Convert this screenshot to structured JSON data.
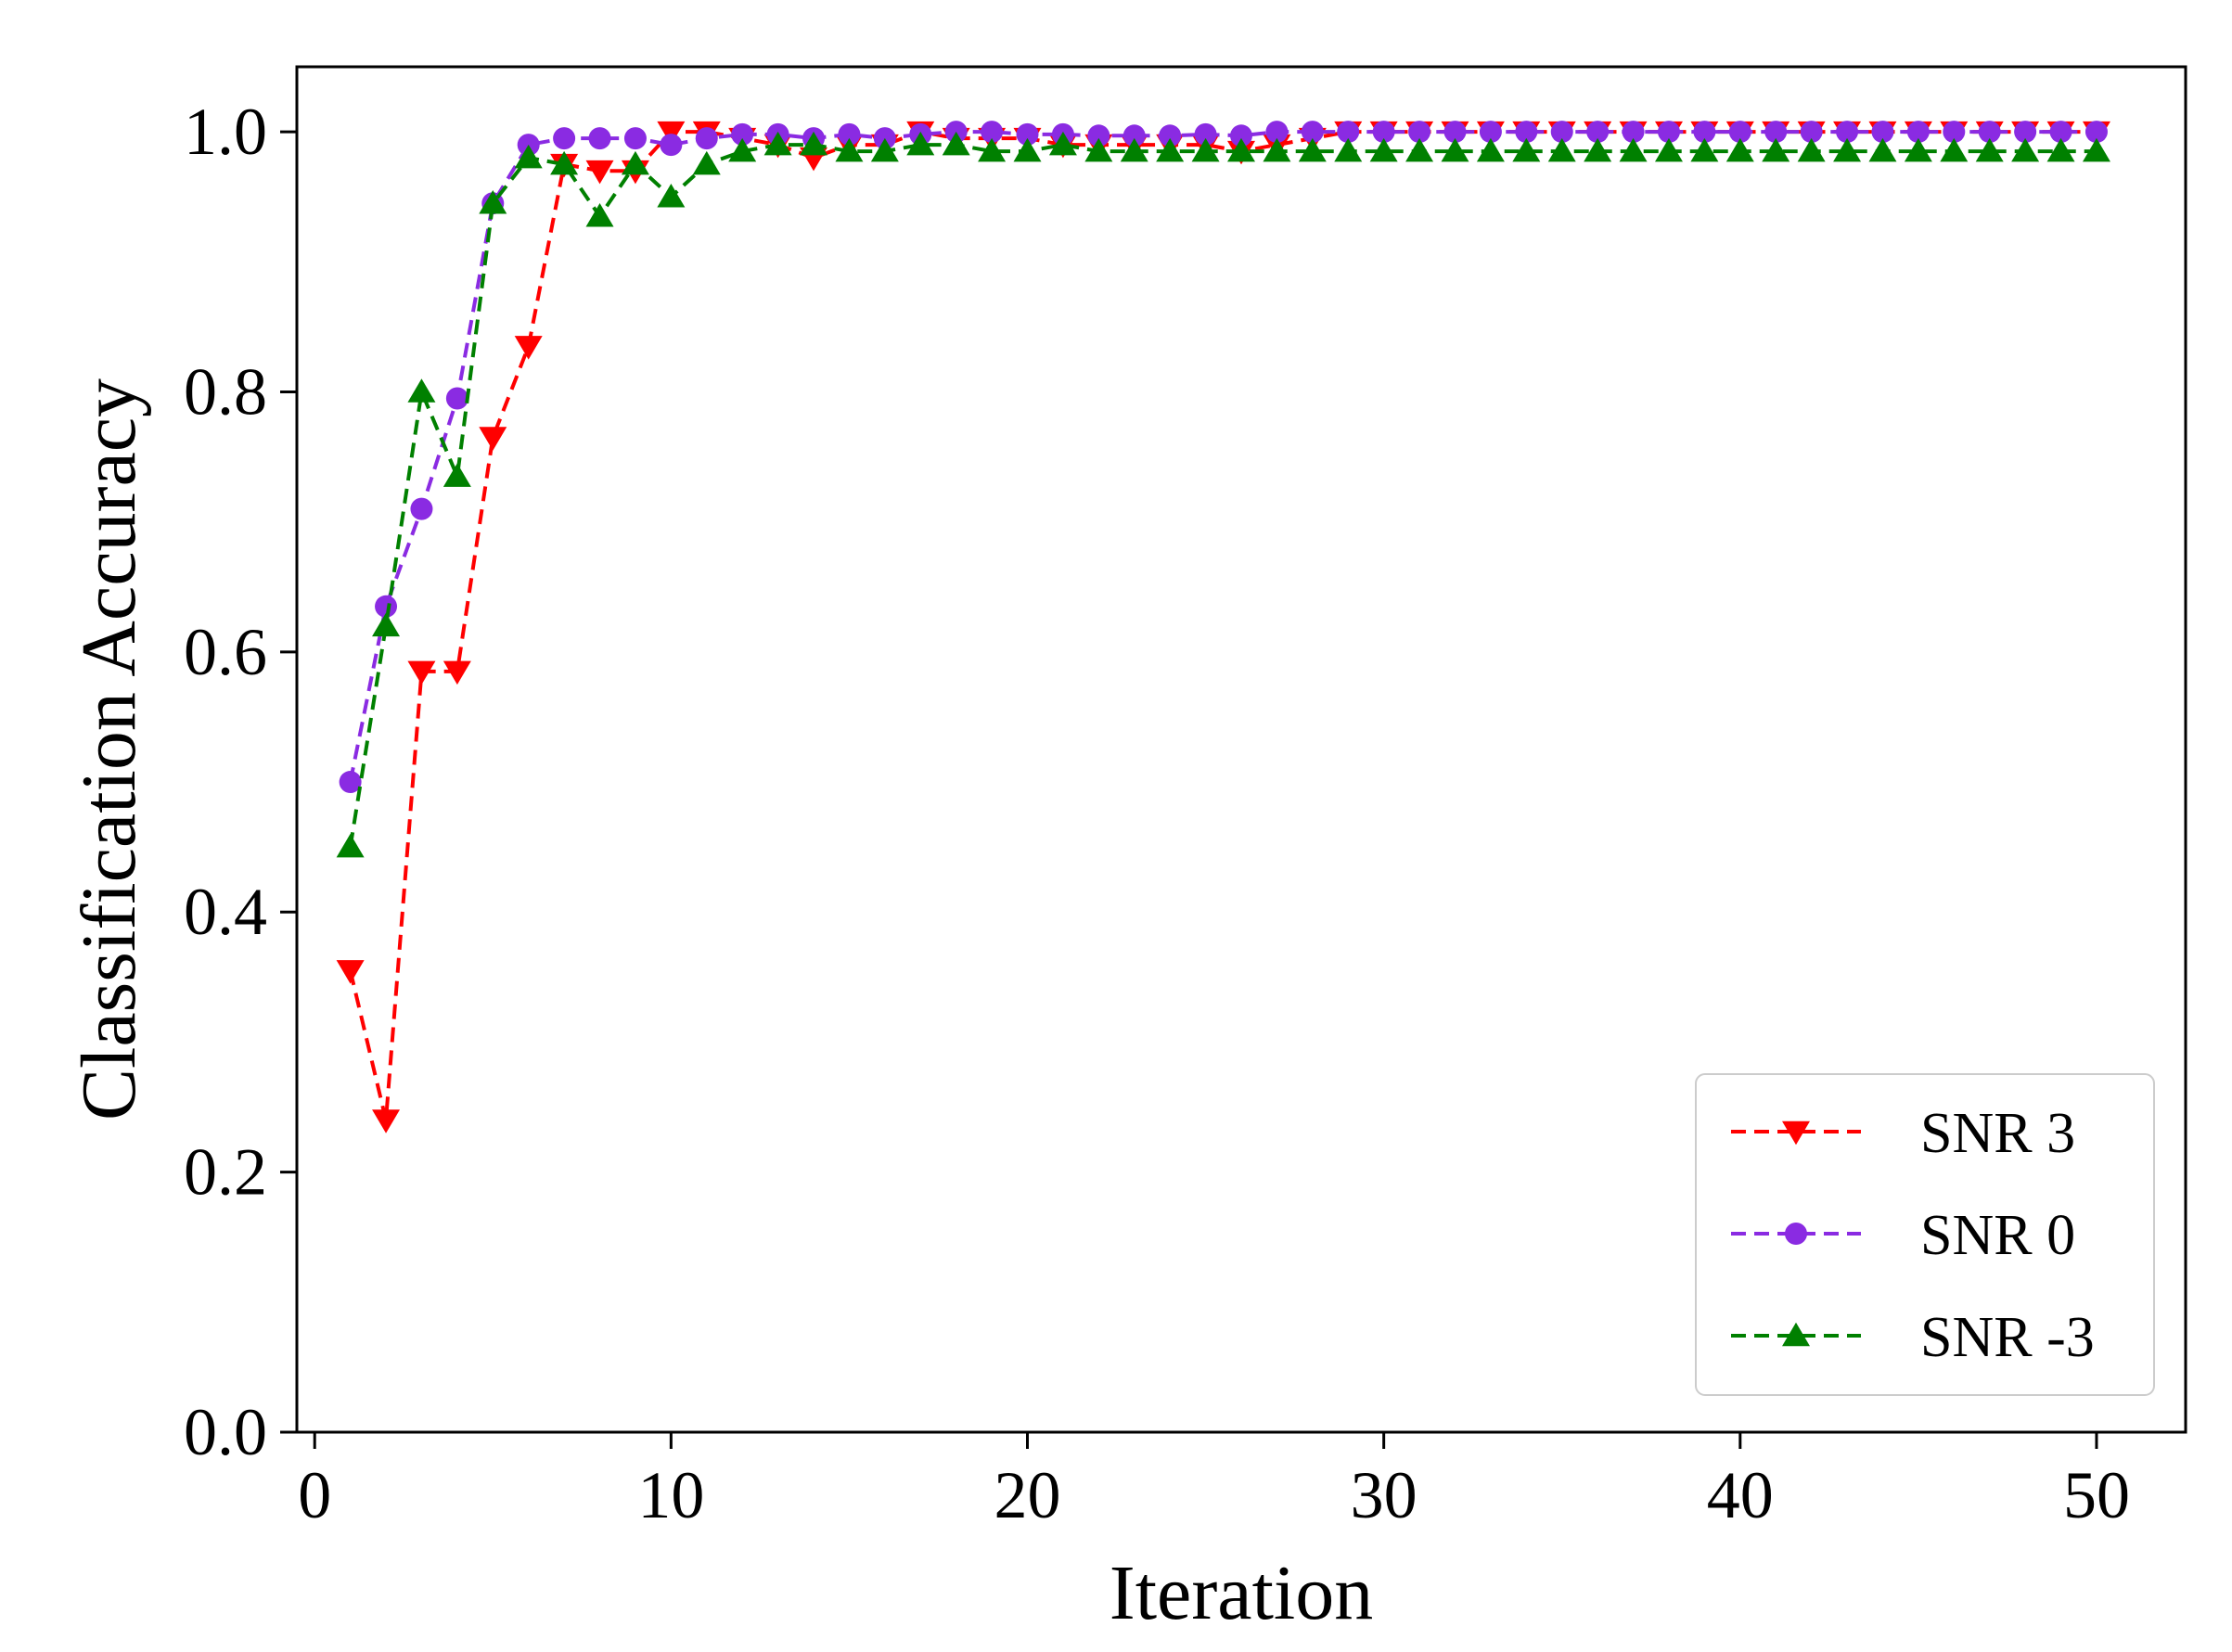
{
  "chart_data": {
    "type": "line",
    "title": "",
    "xlabel": "Iteration",
    "ylabel": "Classification Accuracy",
    "xlim": [
      -0.5,
      52.5
    ],
    "ylim": [
      0.0,
      1.05
    ],
    "xticks": [
      0,
      10,
      20,
      30,
      40,
      50
    ],
    "xtick_labels": [
      "0",
      "10",
      "20",
      "30",
      "40",
      "50"
    ],
    "yticks": [
      0.0,
      0.2,
      0.4,
      0.6,
      0.8,
      1.0
    ],
    "ytick_labels": [
      "0.0",
      "0.2",
      "0.4",
      "0.6",
      "0.8",
      "1.0"
    ],
    "grid": false,
    "legend_position": "lower-right",
    "x": [
      1,
      2,
      3,
      4,
      5,
      6,
      7,
      8,
      9,
      10,
      11,
      12,
      13,
      14,
      15,
      16,
      17,
      18,
      19,
      20,
      21,
      22,
      23,
      24,
      25,
      26,
      27,
      28,
      29,
      30,
      31,
      32,
      33,
      34,
      35,
      36,
      37,
      38,
      39,
      40,
      41,
      42,
      43,
      44,
      45,
      46,
      47,
      48,
      49,
      50
    ],
    "series": [
      {
        "name": "SNR 3",
        "color": "#ff0000",
        "marker": "triangle-down",
        "values": [
          0.355,
          0.24,
          0.585,
          0.585,
          0.765,
          0.835,
          0.975,
          0.97,
          0.97,
          1.0,
          1.0,
          0.995,
          0.99,
          0.98,
          0.99,
          0.99,
          1.0,
          0.995,
          0.995,
          0.995,
          0.99,
          0.99,
          0.99,
          0.99,
          0.99,
          0.985,
          0.99,
          0.995,
          1.0,
          1.0,
          1.0,
          1.0,
          1.0,
          1.0,
          1.0,
          1.0,
          1.0,
          1.0,
          1.0,
          1.0,
          1.0,
          1.0,
          1.0,
          1.0,
          1.0,
          1.0,
          1.0,
          1.0,
          1.0,
          1.0
        ]
      },
      {
        "name": "SNR 0",
        "color": "#8a2be2",
        "marker": "circle",
        "values": [
          0.5,
          0.635,
          0.71,
          0.795,
          0.945,
          0.99,
          0.995,
          0.995,
          0.995,
          0.99,
          0.995,
          0.998,
          0.998,
          0.995,
          0.998,
          0.995,
          0.998,
          1.0,
          1.0,
          0.998,
          0.998,
          0.997,
          0.997,
          0.997,
          0.998,
          0.997,
          1.0,
          1.0,
          1.0,
          1.0,
          1.0,
          1.0,
          1.0,
          1.0,
          1.0,
          1.0,
          1.0,
          1.0,
          1.0,
          1.0,
          1.0,
          1.0,
          1.0,
          1.0,
          1.0,
          1.0,
          1.0,
          1.0,
          1.0,
          1.0
        ]
      },
      {
        "name": "SNR -3",
        "color": "#008000",
        "marker": "triangle-up",
        "values": [
          0.45,
          0.62,
          0.8,
          0.735,
          0.945,
          0.98,
          0.975,
          0.935,
          0.975,
          0.95,
          0.975,
          0.985,
          0.99,
          0.99,
          0.985,
          0.985,
          0.99,
          0.99,
          0.985,
          0.985,
          0.99,
          0.985,
          0.985,
          0.985,
          0.985,
          0.985,
          0.985,
          0.985,
          0.985,
          0.985,
          0.985,
          0.985,
          0.985,
          0.985,
          0.985,
          0.985,
          0.985,
          0.985,
          0.985,
          0.985,
          0.985,
          0.985,
          0.985,
          0.985,
          0.985,
          0.985,
          0.985,
          0.985,
          0.985,
          0.985
        ]
      }
    ]
  }
}
